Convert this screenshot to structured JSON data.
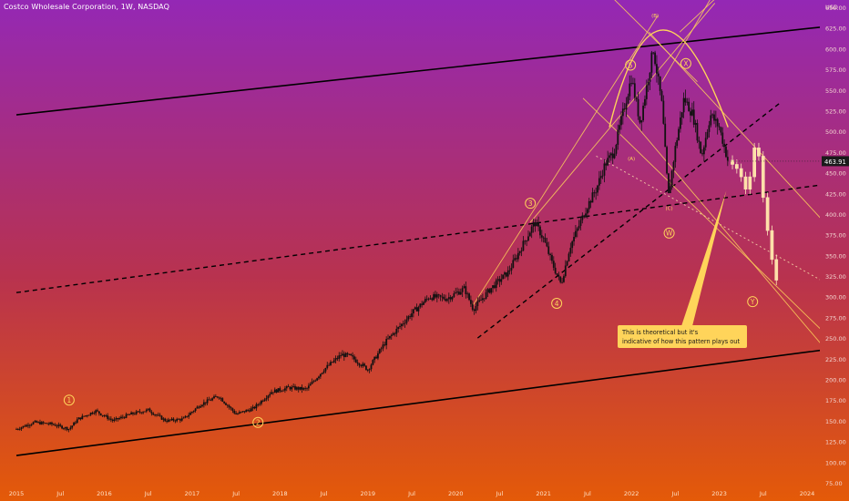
{
  "title": "Costco Wholesale Corporation, 1W, NASDAQ",
  "colors": {
    "gradient_top": "#9428b5",
    "gradient_mid": "#b8324f",
    "gradient_bottom": "#e45a08",
    "wave": "#ffd45a",
    "price_label_bg": "#1a1a1a"
  },
  "chart_data": {
    "type": "candlestick",
    "currency": "USD",
    "ylim": [
      75,
      650
    ],
    "yticks": [
      75,
      100,
      125,
      150,
      175,
      200,
      225,
      250,
      275,
      300,
      325,
      350,
      375,
      400,
      425,
      450,
      475,
      500,
      525,
      550,
      575,
      600,
      625,
      650
    ],
    "ytick_labels": [
      "75.00",
      "100.00",
      "125.00",
      "150.00",
      "175.00",
      "200.00",
      "225.00",
      "250.00",
      "275.00",
      "300.00",
      "325.00",
      "350.00",
      "375.00",
      "400.00",
      "425.00",
      "450.00",
      "475.00",
      "500.00",
      "525.00",
      "550.00",
      "575.00",
      "600.00",
      "625.00",
      "650.00"
    ],
    "xlim": [
      2015.0,
      2024.5
    ],
    "xticks": [
      2015.0,
      2015.5,
      2016.0,
      2016.5,
      2017.0,
      2017.5,
      2018.0,
      2018.5,
      2019.0,
      2019.5,
      2020.0,
      2020.5,
      2021.0,
      2021.5,
      2022.0,
      2022.5,
      2023.0,
      2023.5,
      2024.0
    ],
    "xtick_labels": [
      "2015",
      "Jul",
      "2016",
      "Jul",
      "2017",
      "Jul",
      "2018",
      "Jul",
      "2019",
      "Jul",
      "2020",
      "Jul",
      "2021",
      "Jul",
      "2022",
      "Jul",
      "2023",
      "Jul",
      "2024"
    ],
    "last_price": 463.91,
    "last_price_label": "463.91",
    "price_path": [
      [
        2015.0,
        140
      ],
      [
        2015.2,
        148
      ],
      [
        2015.4,
        146
      ],
      [
        2015.6,
        140
      ],
      [
        2015.7,
        152
      ],
      [
        2015.9,
        162
      ],
      [
        2016.1,
        150
      ],
      [
        2016.3,
        158
      ],
      [
        2016.5,
        163
      ],
      [
        2016.7,
        150
      ],
      [
        2016.9,
        152
      ],
      [
        2017.1,
        170
      ],
      [
        2017.3,
        180
      ],
      [
        2017.5,
        158
      ],
      [
        2017.7,
        165
      ],
      [
        2017.9,
        185
      ],
      [
        2018.1,
        190
      ],
      [
        2018.3,
        188
      ],
      [
        2018.5,
        212
      ],
      [
        2018.7,
        230
      ],
      [
        2018.8,
        228
      ],
      [
        2019.0,
        212
      ],
      [
        2019.2,
        245
      ],
      [
        2019.5,
        280
      ],
      [
        2019.7,
        300
      ],
      [
        2019.9,
        298
      ],
      [
        2020.1,
        310
      ],
      [
        2020.2,
        285
      ],
      [
        2020.4,
        310
      ],
      [
        2020.6,
        330
      ],
      [
        2020.8,
        370
      ],
      [
        2020.9,
        390
      ],
      [
        2021.0,
        370
      ],
      [
        2021.1,
        340
      ],
      [
        2021.2,
        315
      ],
      [
        2021.3,
        360
      ],
      [
        2021.5,
        410
      ],
      [
        2021.6,
        430
      ],
      [
        2021.7,
        460
      ],
      [
        2021.8,
        475
      ],
      [
        2021.9,
        520
      ],
      [
        2022.0,
        565
      ],
      [
        2022.1,
        510
      ],
      [
        2022.25,
        600
      ],
      [
        2022.35,
        530
      ],
      [
        2022.42,
        420
      ],
      [
        2022.5,
        480
      ],
      [
        2022.6,
        540
      ],
      [
        2022.7,
        520
      ],
      [
        2022.8,
        470
      ],
      [
        2022.9,
        520
      ],
      [
        2023.0,
        505
      ],
      [
        2023.1,
        463.91
      ]
    ],
    "projection_path": [
      [
        2023.15,
        465
      ],
      [
        2023.2,
        460
      ],
      [
        2023.25,
        455
      ],
      [
        2023.3,
        445
      ],
      [
        2023.35,
        430
      ],
      [
        2023.4,
        445
      ],
      [
        2023.45,
        480
      ],
      [
        2023.5,
        470
      ],
      [
        2023.55,
        420
      ],
      [
        2023.6,
        380
      ],
      [
        2023.65,
        345
      ],
      [
        2023.7,
        320
      ]
    ],
    "wave_labels": [
      {
        "text": "1",
        "x": 2015.6,
        "y": 175,
        "circled": true
      },
      {
        "text": "2",
        "x": 2017.75,
        "y": 148,
        "circled": true
      },
      {
        "text": "3",
        "x": 2020.85,
        "y": 413,
        "circled": true
      },
      {
        "text": "4",
        "x": 2021.15,
        "y": 292,
        "circled": true
      },
      {
        "text": "5",
        "x": 2021.99,
        "y": 580,
        "circled": true
      },
      {
        "text": "(A)",
        "x": 2022.0,
        "y": 467,
        "circled": false
      },
      {
        "text": "(B)",
        "x": 2022.27,
        "y": 640,
        "circled": false
      },
      {
        "text": "(C)",
        "x": 2022.43,
        "y": 407,
        "circled": false
      },
      {
        "text": "W",
        "x": 2022.43,
        "y": 377,
        "circled": true
      },
      {
        "text": "X",
        "x": 2022.62,
        "y": 582,
        "circled": true
      },
      {
        "text": "Y",
        "x": 2023.38,
        "y": 294,
        "circled": true
      }
    ],
    "annotation": "This is theoretical but it's indicative of how this pattern plays out",
    "annotation_anchor": {
      "x": 2023.08,
      "y": 428
    },
    "trendlines": [
      {
        "style": "solid",
        "color": "#000000",
        "from": [
          2015.0,
          520
        ],
        "to": [
          2024.5,
          630
        ]
      },
      {
        "style": "solid",
        "color": "#000000",
        "from": [
          2015.0,
          108
        ],
        "to": [
          2024.5,
          240
        ]
      },
      {
        "style": "dashed",
        "color": "#000000",
        "from": [
          2015.0,
          305
        ],
        "to": [
          2024.5,
          440
        ]
      },
      {
        "style": "dashed",
        "color": "#000000",
        "from": [
          2020.25,
          250
        ],
        "to": [
          2023.7,
          535
        ]
      }
    ]
  }
}
